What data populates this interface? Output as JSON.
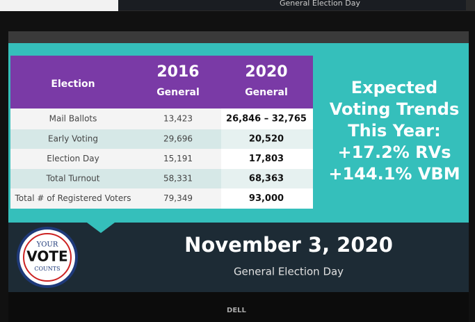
{
  "top_strip": {
    "subtitle": "General Election Day"
  },
  "table": {
    "header": [
      {
        "label": "Election"
      },
      {
        "year": "2016",
        "sub": "General"
      },
      {
        "year": "2020",
        "sub": "General"
      }
    ],
    "rows": [
      [
        "Mail Ballots",
        "13,423",
        "26,846 – 32,765"
      ],
      [
        "Early Voting",
        "29,696",
        "20,520"
      ],
      [
        "Election Day",
        "15,191",
        "17,803"
      ],
      [
        "Total Turnout",
        "58,331",
        "68,363"
      ],
      [
        "Total # of Registered Voters",
        "79,349",
        "93,000"
      ]
    ]
  },
  "side_text": [
    "Expected",
    "Voting Trends",
    "This Year:",
    "+17.2% RVs",
    "+144.1% VBM"
  ],
  "badge": {
    "top": "YOUR",
    "middle": "VOTE",
    "bottom": "COUNTS"
  },
  "footer": {
    "title": "November 3, 2020",
    "subtitle": "General Election Day"
  },
  "brand": "DELL"
}
